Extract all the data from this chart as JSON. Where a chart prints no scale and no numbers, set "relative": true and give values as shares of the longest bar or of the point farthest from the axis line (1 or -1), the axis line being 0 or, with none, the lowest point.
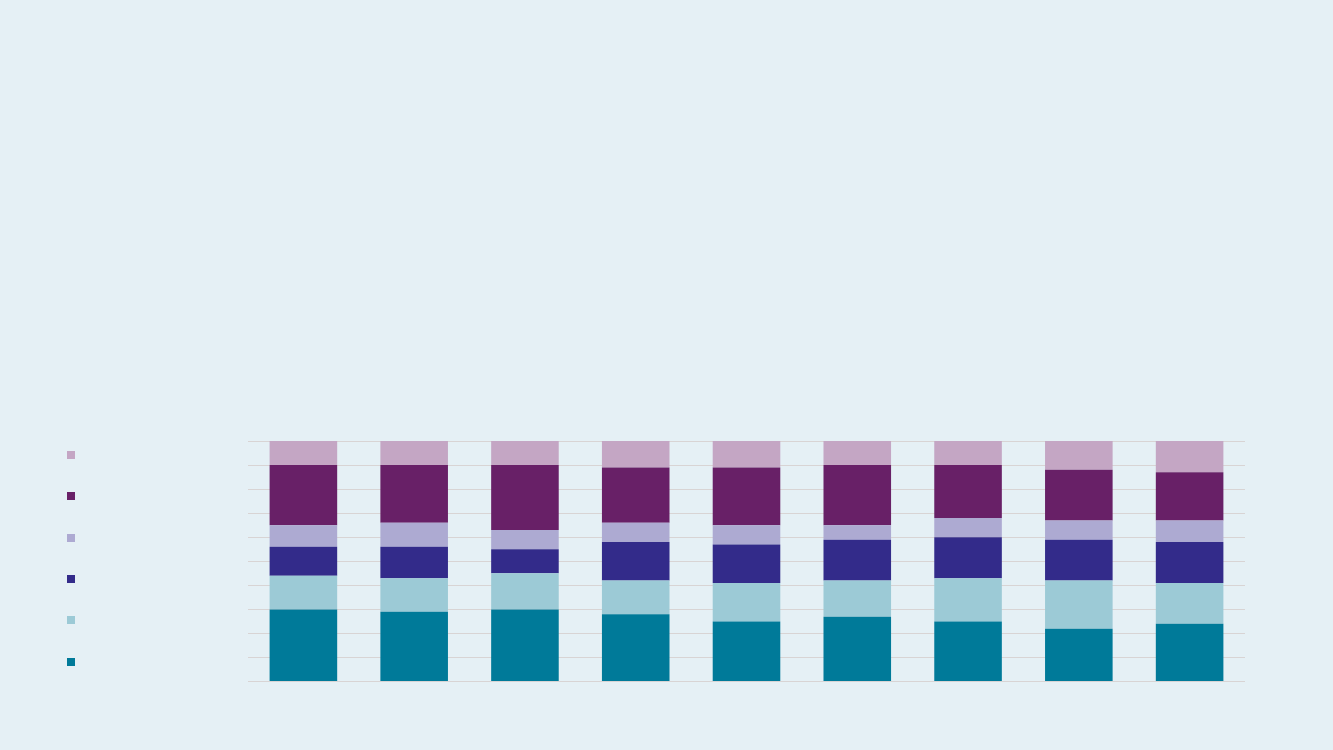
{
  "chart_data": {
    "type": "bar",
    "stacked": true,
    "relative": true,
    "grid": "y",
    "legend": false,
    "categories": [
      null,
      null,
      null,
      null,
      null,
      null,
      null,
      null,
      null
    ],
    "series": [
      {
        "color": "#007a99",
        "values": [
          0.3,
          0.29,
          0.3,
          0.28,
          0.25,
          0.27,
          0.25,
          0.22,
          0.24
        ]
      },
      {
        "color": "#9ccad6",
        "values": [
          0.14,
          0.14,
          0.15,
          0.14,
          0.16,
          0.15,
          0.18,
          0.2,
          0.17
        ]
      },
      {
        "color": "#332b8a",
        "values": [
          0.12,
          0.13,
          0.1,
          0.16,
          0.16,
          0.17,
          0.17,
          0.17,
          0.17
        ]
      },
      {
        "color": "#adaad2",
        "values": [
          0.09,
          0.1,
          0.08,
          0.08,
          0.08,
          0.06,
          0.08,
          0.08,
          0.09
        ]
      },
      {
        "color": "#682067",
        "values": [
          0.25,
          0.24,
          0.27,
          0.23,
          0.24,
          0.25,
          0.22,
          0.21,
          0.2
        ]
      },
      {
        "color": "#c4a6c4",
        "values": [
          0.1,
          0.1,
          0.1,
          0.11,
          0.11,
          0.1,
          0.1,
          0.12,
          0.13
        ]
      }
    ]
  }
}
